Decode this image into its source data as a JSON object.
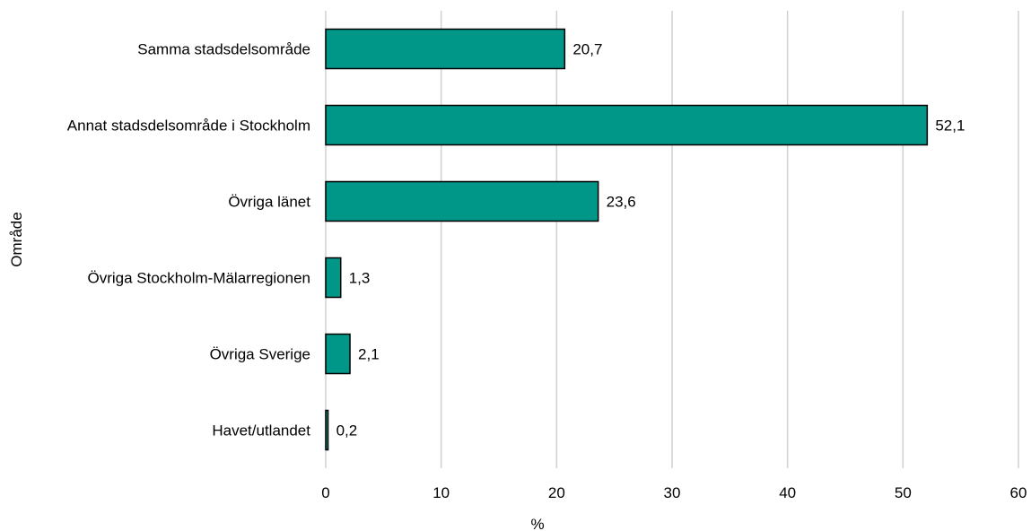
{
  "chart_data": {
    "type": "bar",
    "orientation": "horizontal",
    "categories": [
      "Samma stadsdelsområde",
      "Annat stadsdelsområde i Stockholm",
      "Övriga länet",
      "Övriga Stockholm-Mälarregionen",
      "Övriga Sverige",
      "Havet/utlandet"
    ],
    "values": [
      20.7,
      52.1,
      23.6,
      1.3,
      2.1,
      0.2
    ],
    "value_labels": [
      "20,7",
      "52,1",
      "23,6",
      "1,3",
      "2,1",
      "0,2"
    ],
    "xlabel": "%",
    "ylabel": "Område",
    "xlim": [
      0,
      60
    ],
    "xticks": [
      0,
      10,
      20,
      30,
      40,
      50,
      60
    ],
    "grid": "vertical",
    "legend": "none",
    "bar_color": "#009688",
    "bar_edge_color": "#000000"
  }
}
